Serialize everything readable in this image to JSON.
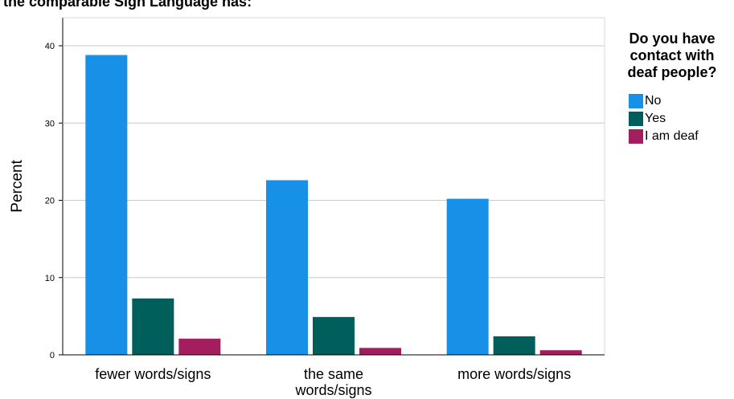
{
  "title": "the comparable Sign Language has:",
  "chart_data": {
    "type": "bar",
    "title": "the comparable Sign Language has:",
    "ylabel": "Percent",
    "xlabel": "",
    "categories": [
      "fewer words/signs",
      "the same words/signs",
      "more words/signs"
    ],
    "category_lines": [
      [
        "fewer words/signs"
      ],
      [
        "the same",
        "words/signs"
      ],
      [
        "more words/signs"
      ]
    ],
    "series": [
      {
        "name": "No",
        "color": "#1791e8",
        "values": [
          38.8,
          22.6,
          20.2
        ]
      },
      {
        "name": "Yes",
        "color": "#005f5b",
        "values": [
          7.3,
          4.9,
          2.4
        ]
      },
      {
        "name": "I am deaf",
        "color": "#a21e5e",
        "values": [
          2.1,
          0.9,
          0.6
        ]
      }
    ],
    "ylim": [
      0,
      40
    ],
    "yticks": [
      0,
      10,
      20,
      30,
      40
    ],
    "grid": true,
    "legend": {
      "title": "Do you have contact with deaf people?",
      "title_lines": [
        "Do you have",
        "contact with",
        "deaf people?"
      ],
      "placement": "right"
    }
  }
}
